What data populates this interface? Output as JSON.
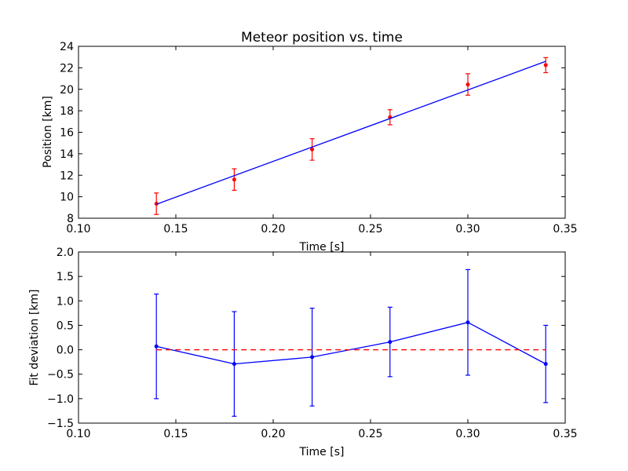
{
  "chart_data": [
    {
      "type": "scatter",
      "title": "Meteor position vs. time",
      "xlabel": "Time [s]",
      "ylabel": "Position [km]",
      "xlim": [
        0.1,
        0.35
      ],
      "ylim": [
        8,
        24
      ],
      "xticks": [
        "0.10",
        "0.15",
        "0.20",
        "0.25",
        "0.30",
        "0.35"
      ],
      "yticks": [
        "8",
        "10",
        "12",
        "14",
        "16",
        "18",
        "20",
        "22",
        "24"
      ],
      "grid": false,
      "series": [
        {
          "kind": "errorbar",
          "color": "#ff0000",
          "x": [
            0.14,
            0.18,
            0.22,
            0.26,
            0.3,
            0.34
          ],
          "y": [
            9.35,
            11.6,
            14.4,
            17.4,
            20.45,
            22.25
          ],
          "yerr": [
            1.0,
            1.0,
            1.0,
            0.7,
            1.0,
            0.7
          ]
        },
        {
          "kind": "fit-line",
          "color": "#0000ff",
          "x": [
            0.14,
            0.34
          ],
          "y": [
            9.3,
            22.6
          ]
        }
      ]
    },
    {
      "type": "line",
      "title": "",
      "xlabel": "Time [s]",
      "ylabel": "Fit deviation [km]",
      "xlim": [
        0.1,
        0.35
      ],
      "ylim": [
        -1.5,
        2.0
      ],
      "xticks": [
        "0.10",
        "0.15",
        "0.20",
        "0.25",
        "0.30",
        "0.35"
      ],
      "yticks": [
        "−1.5",
        "−1.0",
        "−0.5",
        "0.0",
        "0.5",
        "1.0",
        "1.5",
        "2.0"
      ],
      "grid": false,
      "series": [
        {
          "kind": "errorbar-line",
          "color": "#0000ff",
          "x": [
            0.14,
            0.18,
            0.22,
            0.26,
            0.3,
            0.34
          ],
          "y": [
            0.07,
            -0.29,
            -0.15,
            0.16,
            0.56,
            -0.29
          ],
          "yerr": [
            1.07,
            1.07,
            1.0,
            0.71,
            1.08,
            0.79
          ]
        },
        {
          "kind": "zero-line",
          "color": "#ff0000",
          "x": [
            0.14,
            0.34
          ],
          "y": [
            0,
            0
          ]
        }
      ]
    }
  ]
}
